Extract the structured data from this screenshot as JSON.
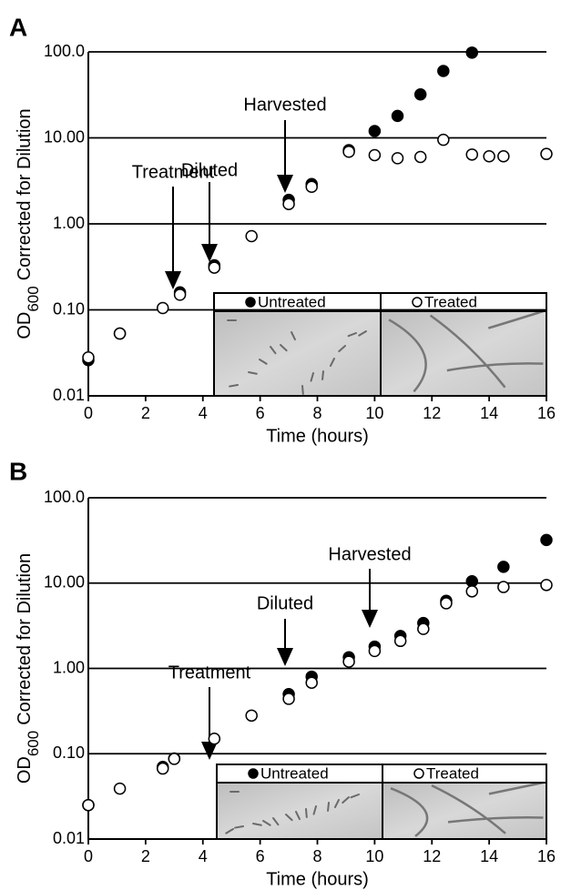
{
  "chart_data": [
    {
      "type": "scatter",
      "panel": "A",
      "xlabel": "Time (hours)",
      "ylabel": [
        "OD",
        "600",
        "Corrected for Dilution"
      ],
      "xlim": [
        0,
        16
      ],
      "xticks": [
        0,
        2,
        4,
        6,
        8,
        10,
        12,
        14,
        16
      ],
      "ylim": [
        0.01,
        100
      ],
      "log_y": true,
      "grid": true,
      "yticks": [
        0.01,
        {
          "value": 0.1,
          "label": "0.10"
        },
        {
          "value": 1,
          "label": "1.00"
        },
        {
          "value": 10,
          "label": "10.00"
        },
        {
          "value": 100,
          "label": "100.0"
        }
      ],
      "annotations": [
        "Treatment",
        "Diluted",
        "Harvested"
      ],
      "series": [
        {
          "name": "Untreated",
          "color": "#000000",
          "filled": true,
          "x": [
            0,
            1.1,
            3.2,
            4.4,
            7.0,
            7.8,
            9.1,
            10.0,
            10.8,
            11.6,
            12.4,
            13.4
          ],
          "values": [
            0.026,
            0.053,
            0.16,
            0.33,
            1.9,
            2.9,
            7.2,
            12,
            18,
            32,
            60,
            98
          ]
        },
        {
          "name": "Treated",
          "color": "#000000",
          "filled": false,
          "x": [
            0,
            1.1,
            2.6,
            3.2,
            4.4,
            5.7,
            7.0,
            7.8,
            9.1,
            10.0,
            10.8,
            11.6,
            12.4,
            13.4,
            14.0,
            14.5,
            16
          ],
          "values": [
            0.028,
            0.053,
            0.105,
            0.15,
            0.31,
            0.72,
            1.7,
            2.7,
            6.9,
            6.3,
            5.8,
            6.0,
            9.5,
            6.4,
            6.1,
            6.1,
            6.5
          ]
        }
      ]
    },
    {
      "type": "scatter",
      "panel": "B",
      "xlabel": "Time (hours)",
      "ylabel": [
        "OD",
        "600",
        "Corrected for Dilution"
      ],
      "xlim": [
        0,
        16
      ],
      "xticks": [
        0,
        2,
        4,
        6,
        8,
        10,
        12,
        14,
        16
      ],
      "ylim": [
        0.01,
        100
      ],
      "log_y": true,
      "grid": true,
      "yticks": [
        0.01,
        {
          "value": 0.1,
          "label": "0.10"
        },
        {
          "value": 1,
          "label": "1.00"
        },
        {
          "value": 10,
          "label": "10.00"
        },
        {
          "value": 100,
          "label": "100.0"
        }
      ],
      "annotations": [
        "Treatment",
        "Diluted",
        "Harvested"
      ],
      "series": [
        {
          "name": "Untreated",
          "color": "#000000",
          "filled": true,
          "x": [
            0,
            2.6,
            3.0,
            7.0,
            7.8,
            9.1,
            10.0,
            10.9,
            11.7,
            12.5,
            13.4,
            14.5,
            16
          ],
          "values": [
            0.025,
            0.07,
            0.088,
            0.5,
            0.8,
            1.35,
            1.8,
            2.4,
            3.4,
            6.2,
            10.5,
            15.5,
            32
          ]
        },
        {
          "name": "Treated",
          "color": "#000000",
          "filled": false,
          "x": [
            0,
            1.1,
            2.6,
            3.0,
            4.4,
            5.7,
            7.0,
            7.8,
            9.1,
            10.0,
            10.9,
            11.7,
            12.5,
            13.4,
            14.5,
            16
          ],
          "values": [
            0.025,
            0.039,
            0.067,
            0.087,
            0.15,
            0.28,
            0.44,
            0.68,
            1.2,
            1.6,
            2.1,
            2.9,
            5.8,
            8.0,
            9.0,
            9.5
          ]
        }
      ]
    }
  ]
}
